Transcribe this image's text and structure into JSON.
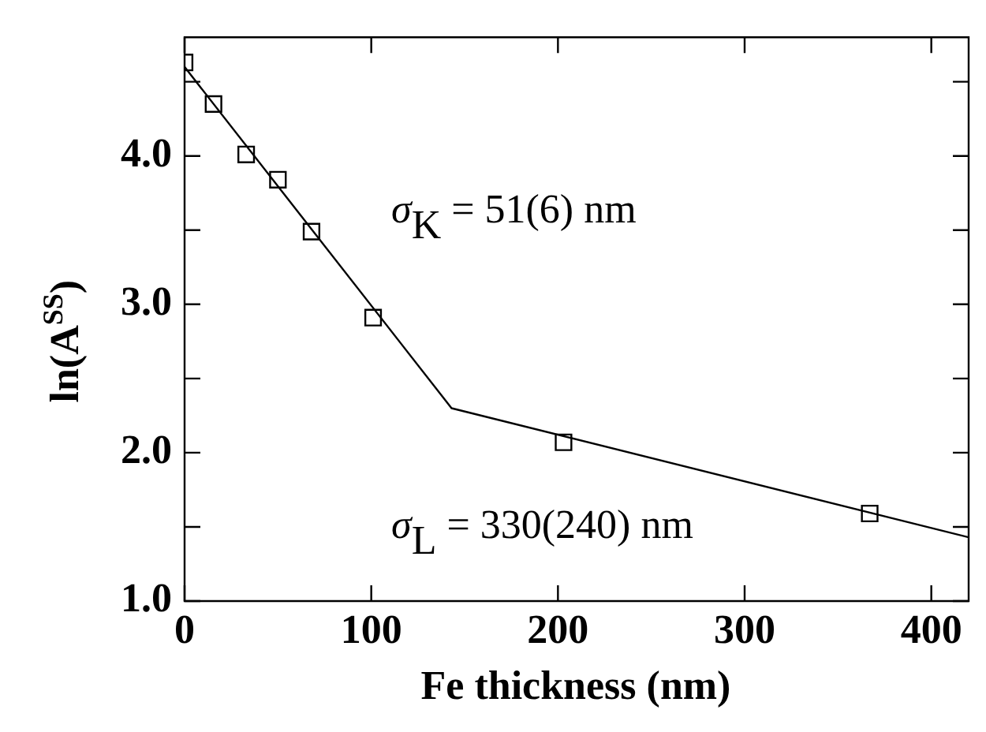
{
  "chart_data": {
    "type": "scatter",
    "xlabel": "Fe thickness (nm)",
    "ylabel": "ln(A$^{SS}$)",
    "annotations": [
      "σ$_{K}$ = 51(6) nm",
      "σ$_{L}$ = 330(240) nm"
    ],
    "xlim": [
      0,
      420
    ],
    "xticks": [
      0,
      100,
      200,
      300,
      400
    ],
    "ylim": [
      1,
      4.8
    ],
    "yticks": [
      "1.0",
      {
        "value": 1.5,
        "label": null
      },
      {
        "value": 2,
        "label": "2.0"
      },
      {
        "value": 2.5,
        "label": null
      },
      {
        "value": 3,
        "label": "3.0"
      },
      {
        "value": 3.5,
        "label": null
      },
      {
        "value": 4,
        "label": "4.0"
      },
      {
        "value": 4.5,
        "label": null
      }
    ],
    "marker": "square",
    "grid": false,
    "legend": false,
    "series": [
      {
        "type": "scatter",
        "color": "#000000",
        "x": [
          0,
          15.5,
          33,
          50,
          68,
          101,
          203,
          367
        ],
        "values": [
          4.63,
          4.35,
          4.01,
          3.84,
          3.49,
          2.91,
          2.07,
          1.59
        ]
      },
      {
        "type": "line",
        "color": "#000000",
        "x": [
          0,
          143,
          420
        ],
        "values": [
          4.6,
          2.3,
          1.43
        ],
        "marker": "none"
      }
    ]
  }
}
